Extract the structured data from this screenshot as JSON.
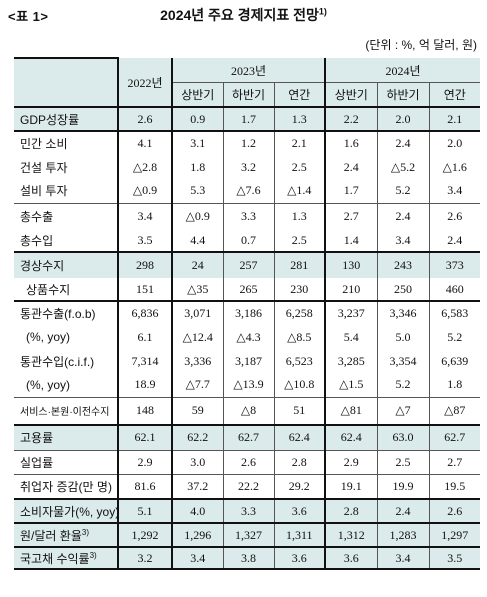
{
  "header": {
    "tag": "<표 1>",
    "title": "2024년 주요 경제지표 전망",
    "title_sup": "1)",
    "unit": "(단위 : %, 억 달러, 원)"
  },
  "columns": {
    "y2022": "2022년",
    "y2023": "2023년",
    "y2024": "2024년",
    "h1": "상반기",
    "h2": "하반기",
    "annual": "연간"
  },
  "rows": [
    {
      "label": "GDP성장률",
      "v": [
        "2.6",
        "0.9",
        "1.7",
        "1.3",
        "2.2",
        "2.0",
        "2.1"
      ]
    },
    {
      "label": "민간 소비",
      "v": [
        "4.1",
        "3.1",
        "1.2",
        "2.1",
        "1.6",
        "2.4",
        "2.0"
      ]
    },
    {
      "label": "건설 투자",
      "v": [
        "△2.8",
        "1.8",
        "3.2",
        "2.5",
        "2.4",
        "△5.2",
        "△1.6"
      ]
    },
    {
      "label": "설비 투자",
      "v": [
        "△0.9",
        "5.3",
        "△7.6",
        "△1.4",
        "1.7",
        "5.2",
        "3.4"
      ]
    },
    {
      "label": "총수출",
      "v": [
        "3.4",
        "△0.9",
        "3.3",
        "1.3",
        "2.7",
        "2.4",
        "2.6"
      ]
    },
    {
      "label": "총수입",
      "v": [
        "3.5",
        "4.4",
        "0.7",
        "2.5",
        "1.4",
        "3.4",
        "2.4"
      ]
    },
    {
      "label": "경상수지",
      "v": [
        "298",
        "24",
        "257",
        "281",
        "130",
        "243",
        "373"
      ]
    },
    {
      "label": "상품수지",
      "v": [
        "151",
        "△35",
        "265",
        "230",
        "210",
        "250",
        "460"
      ]
    },
    {
      "label": "통관수출(f.o.b)",
      "v": [
        "6,836",
        "3,071",
        "3,186",
        "6,258",
        "3,237",
        "3,346",
        "6,583"
      ]
    },
    {
      "label": "(%, yoy)",
      "v": [
        "6.1",
        "△12.4",
        "△4.3",
        "△8.5",
        "5.4",
        "5.0",
        "5.2"
      ]
    },
    {
      "label": "통관수입(c.i.f.)",
      "v": [
        "7,314",
        "3,336",
        "3,187",
        "6,523",
        "3,285",
        "3,354",
        "6,639"
      ]
    },
    {
      "label": "(%, yoy)",
      "v": [
        "18.9",
        "△7.7",
        "△13.9",
        "△10.8",
        "△1.5",
        "5.2",
        "1.8"
      ]
    },
    {
      "label": "서비스·본원·이전수지",
      "v": [
        "148",
        "59",
        "△8",
        "51",
        "△81",
        "△7",
        "△87"
      ]
    },
    {
      "label": "고용률",
      "v": [
        "62.1",
        "62.2",
        "62.7",
        "62.4",
        "62.4",
        "63.0",
        "62.7"
      ]
    },
    {
      "label": "실업률",
      "v": [
        "2.9",
        "3.0",
        "2.6",
        "2.8",
        "2.9",
        "2.5",
        "2.7"
      ]
    },
    {
      "label": "취업자 증감(만 명)",
      "v": [
        "81.6",
        "37.2",
        "22.2",
        "29.2",
        "19.1",
        "19.9",
        "19.5"
      ]
    },
    {
      "label": "소비자물가(%, yoy)",
      "v": [
        "5.1",
        "4.0",
        "3.3",
        "3.6",
        "2.8",
        "2.4",
        "2.6"
      ]
    },
    {
      "label": "원/달러 환율",
      "sup": "3)",
      "v": [
        "1,292",
        "1,296",
        "1,327",
        "1,311",
        "1,312",
        "1,283",
        "1,297"
      ]
    },
    {
      "label": "국고채 수익률",
      "sup": "3)",
      "v": [
        "3.2",
        "3.4",
        "3.8",
        "3.6",
        "3.6",
        "3.4",
        "3.5"
      ]
    }
  ]
}
